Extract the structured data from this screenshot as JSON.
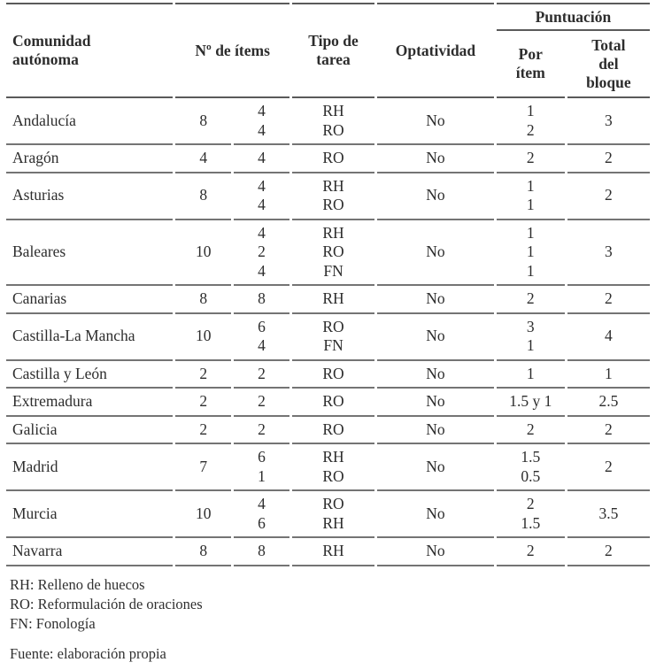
{
  "table": {
    "headers": {
      "comunidad": "Comunidad autónoma",
      "n_items": "Nº de ítems",
      "tipo": "Tipo de tarea",
      "optatividad": "Optatividad",
      "puntuacion": "Puntuación",
      "por_item": "Por ítem",
      "total_bloque": "Total del bloque"
    },
    "rows": [
      {
        "comunidad": "Andalucía",
        "n_items": "8",
        "breakdown": [
          "4",
          "4"
        ],
        "tipo": [
          "RH",
          "RO"
        ],
        "optatividad": "No",
        "por_item": [
          "1",
          "2"
        ],
        "total": "3"
      },
      {
        "comunidad": "Aragón",
        "n_items": "4",
        "breakdown": [
          "4"
        ],
        "tipo": [
          "RO"
        ],
        "optatividad": "No",
        "por_item": [
          "2"
        ],
        "total": "2"
      },
      {
        "comunidad": "Asturias",
        "n_items": "8",
        "breakdown": [
          "4",
          "4"
        ],
        "tipo": [
          "RH",
          "RO"
        ],
        "optatividad": "No",
        "por_item": [
          "1",
          "1"
        ],
        "total": "2"
      },
      {
        "comunidad": "Baleares",
        "n_items": "10",
        "breakdown": [
          "4",
          "2",
          "4"
        ],
        "tipo": [
          "RH",
          "RO",
          "FN"
        ],
        "optatividad": "No",
        "por_item": [
          "1",
          "1",
          "1"
        ],
        "total": "3"
      },
      {
        "comunidad": "Canarias",
        "n_items": "8",
        "breakdown": [
          "8"
        ],
        "tipo": [
          "RH"
        ],
        "optatividad": "No",
        "por_item": [
          "2"
        ],
        "total": "2"
      },
      {
        "comunidad": "Castilla-La Mancha",
        "n_items": "10",
        "breakdown": [
          "6",
          "4"
        ],
        "tipo": [
          "RO",
          "FN"
        ],
        "optatividad": "No",
        "por_item": [
          "3",
          "1"
        ],
        "total": "4"
      },
      {
        "comunidad": "Castilla y León",
        "n_items": "2",
        "breakdown": [
          "2"
        ],
        "tipo": [
          "RO"
        ],
        "optatividad": "No",
        "por_item": [
          "1"
        ],
        "total": "1"
      },
      {
        "comunidad": "Extremadura",
        "n_items": "2",
        "breakdown": [
          "2"
        ],
        "tipo": [
          "RO"
        ],
        "optatividad": "No",
        "por_item": [
          "1.5 y 1"
        ],
        "total": "2.5"
      },
      {
        "comunidad": "Galicia",
        "n_items": "2",
        "breakdown": [
          "2"
        ],
        "tipo": [
          "RO"
        ],
        "optatividad": "No",
        "por_item": [
          "2"
        ],
        "total": "2"
      },
      {
        "comunidad": "Madrid",
        "n_items": "7",
        "breakdown": [
          "6",
          "1"
        ],
        "tipo": [
          "RH",
          "RO"
        ],
        "optatividad": "No",
        "por_item": [
          "1.5",
          "0.5"
        ],
        "total": "2"
      },
      {
        "comunidad": "Murcia",
        "n_items": "10",
        "breakdown": [
          "4",
          "6"
        ],
        "tipo": [
          "RO",
          "RH"
        ],
        "optatividad": "No",
        "por_item": [
          "2",
          "1.5"
        ],
        "total": "3.5"
      },
      {
        "comunidad": "Navarra",
        "n_items": "8",
        "breakdown": [
          "8"
        ],
        "tipo": [
          "RH"
        ],
        "optatividad": "No",
        "por_item": [
          "2"
        ],
        "total": "2"
      }
    ]
  },
  "footnotes": [
    "RH: Relleno de huecos",
    "RO: Reformulación de oraciones",
    "FN: Fonología"
  ],
  "source": "Fuente: elaboración propia",
  "colors": {
    "text": "#2d2d2d",
    "rule": "#5a5a5a",
    "background": "#ffffff"
  }
}
